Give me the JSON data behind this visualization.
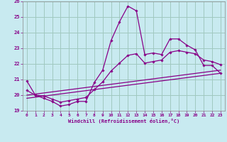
{
  "xlabel": "Windchill (Refroidissement éolien,°C)",
  "xlim": [
    -0.5,
    23.5
  ],
  "ylim": [
    19,
    26
  ],
  "yticks": [
    19,
    20,
    21,
    22,
    23,
    24,
    25,
    26
  ],
  "xticks": [
    0,
    1,
    2,
    3,
    4,
    5,
    6,
    7,
    8,
    9,
    10,
    11,
    12,
    13,
    14,
    15,
    16,
    17,
    18,
    19,
    20,
    21,
    22,
    23
  ],
  "bg_color": "#c8eaf0",
  "line_color": "#880088",
  "grid_color": "#a0c8c0",
  "lines": [
    {
      "x": [
        0,
        1,
        2,
        3,
        4,
        5,
        6,
        7,
        8,
        9,
        10,
        11,
        12,
        13,
        14,
        15,
        16,
        17,
        18,
        19,
        20,
        21,
        22,
        23
      ],
      "y": [
        20.9,
        20.0,
        19.8,
        19.6,
        19.3,
        19.4,
        19.6,
        19.6,
        20.8,
        21.6,
        23.5,
        24.7,
        25.7,
        25.4,
        22.6,
        22.7,
        22.6,
        23.6,
        23.6,
        23.2,
        22.9,
        21.9,
        21.9,
        21.4
      ],
      "marker": true
    },
    {
      "x": [
        0,
        1,
        2,
        3,
        4,
        5,
        6,
        7,
        8,
        9,
        10,
        11,
        12,
        13,
        14,
        15,
        16,
        17,
        18,
        19,
        20,
        21,
        22,
        23
      ],
      "y": [
        20.3,
        20.0,
        19.95,
        19.75,
        19.55,
        19.65,
        19.75,
        19.85,
        20.35,
        20.85,
        21.55,
        22.05,
        22.55,
        22.65,
        22.05,
        22.15,
        22.25,
        22.75,
        22.85,
        22.75,
        22.65,
        22.25,
        22.15,
        21.95
      ],
      "marker": true
    },
    {
      "x": [
        0,
        23
      ],
      "y": [
        20.0,
        21.6
      ],
      "marker": false
    },
    {
      "x": [
        0,
        23
      ],
      "y": [
        19.8,
        21.4
      ],
      "marker": false
    }
  ]
}
